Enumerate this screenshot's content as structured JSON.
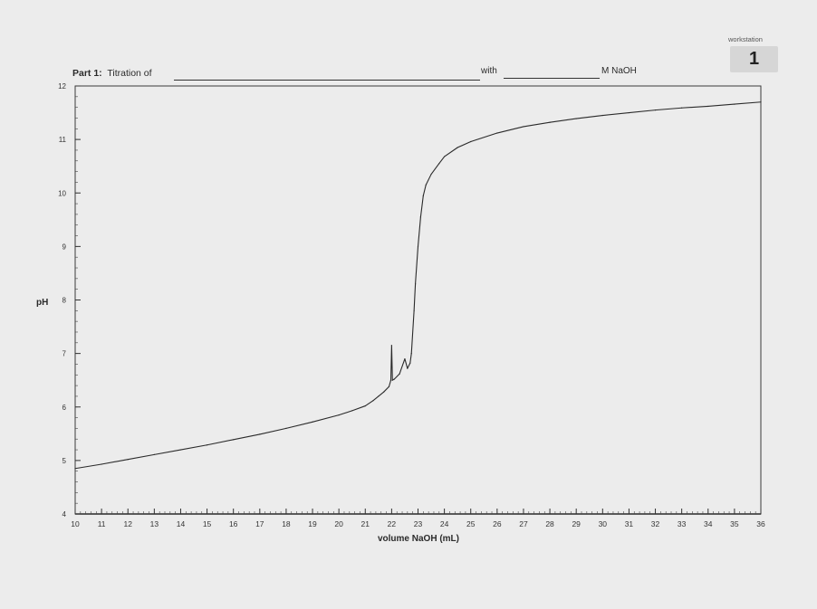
{
  "header": {
    "part_label": "Part 1:",
    "titration_label": "Titration of",
    "with_label": "with",
    "unit_label": "M NaOH"
  },
  "workstation": {
    "label": "workstation",
    "number": "1"
  },
  "chart_data": {
    "type": "line",
    "title": "",
    "xlabel": "volume NaOH (mL)",
    "ylabel": "pH",
    "xlim": [
      10,
      36
    ],
    "ylim": [
      4,
      12
    ],
    "x_ticks": [
      "10",
      "11",
      "12",
      "13",
      "14",
      "15",
      "16",
      "17",
      "18",
      "19",
      "20",
      "21",
      "22",
      "23",
      "24",
      "25",
      "26",
      "27",
      "28",
      "29",
      "30",
      "31",
      "32",
      "33",
      "34",
      "35",
      "36"
    ],
    "y_ticks": [
      "4",
      "5",
      "6",
      "7",
      "8",
      "9",
      "10",
      "11",
      "12"
    ],
    "grid": false,
    "legend": "none",
    "series": [
      {
        "color": "#2a2a2a",
        "x": [
          10,
          11,
          12,
          13,
          14,
          15,
          16,
          17,
          18,
          19,
          20,
          20.5,
          21,
          21.3,
          21.5,
          21.7,
          21.9,
          21.97,
          22.0,
          22.03,
          22.1,
          22.3,
          22.5,
          22.6,
          22.7,
          22.75,
          22.85,
          22.9,
          23.0,
          23.1,
          23.2,
          23.3,
          23.5,
          23.8,
          24.0,
          24.5,
          25.0,
          26.0,
          27.0,
          28.0,
          29.0,
          30.0,
          31.0,
          32.0,
          33.0,
          34.0,
          35.0,
          36.0
        ],
        "y": [
          4.85,
          4.93,
          5.02,
          5.11,
          5.2,
          5.29,
          5.39,
          5.49,
          5.6,
          5.72,
          5.85,
          5.93,
          6.02,
          6.12,
          6.2,
          6.28,
          6.38,
          6.5,
          7.15,
          6.5,
          6.52,
          6.62,
          6.9,
          6.72,
          6.82,
          7.0,
          7.8,
          8.3,
          9.0,
          9.55,
          9.95,
          10.15,
          10.35,
          10.55,
          10.68,
          10.85,
          10.96,
          11.12,
          11.24,
          11.32,
          11.39,
          11.45,
          11.5,
          11.55,
          11.59,
          11.62,
          11.66,
          11.7
        ]
      }
    ]
  }
}
